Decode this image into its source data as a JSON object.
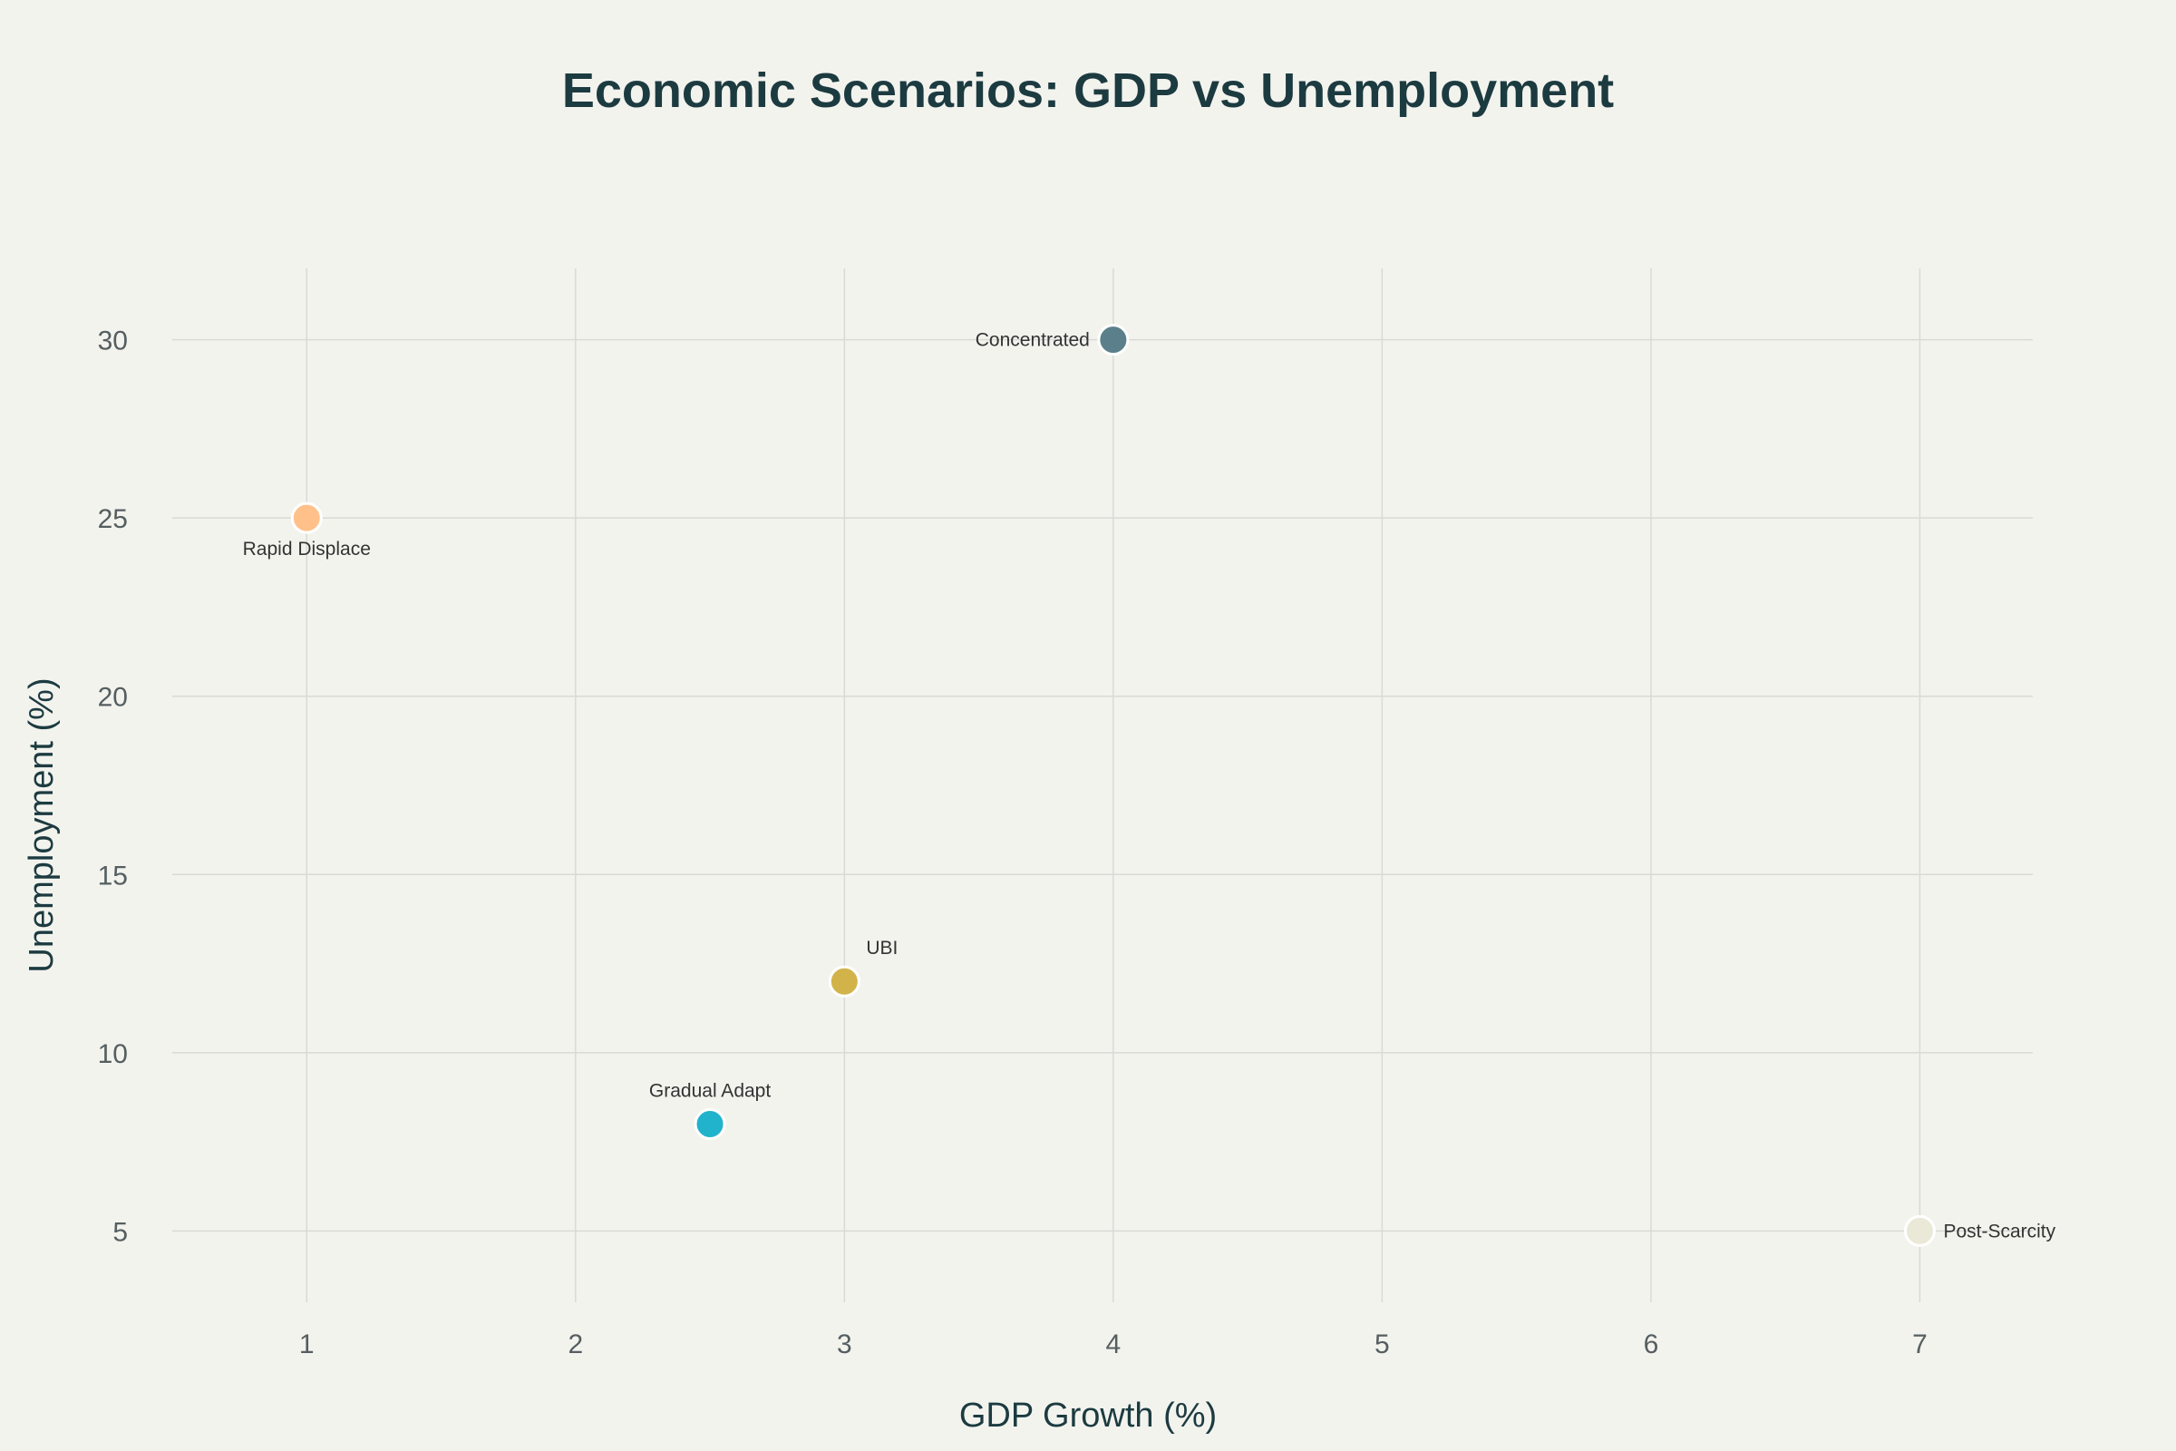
{
  "chart_data": {
    "type": "scatter",
    "title": "Economic Scenarios: GDP vs Unemployment",
    "xlabel": "GDP Growth (%)",
    "ylabel": "Unemployment (%)",
    "xlim": [
      0.5,
      7.42
    ],
    "ylim": [
      3.0,
      32.0
    ],
    "xticks": [
      1,
      2,
      3,
      4,
      5,
      6,
      7
    ],
    "yticks": [
      5,
      10,
      15,
      20,
      25,
      30
    ],
    "grid": true,
    "legend": "none",
    "points": [
      {
        "label": "Rapid Displace",
        "x": 1.0,
        "y": 25.0,
        "color": "#ffc08a",
        "label_position": "bottom"
      },
      {
        "label": "Concentrated",
        "x": 4.0,
        "y": 30.0,
        "color": "#5b808b",
        "label_position": "left"
      },
      {
        "label": "UBI",
        "x": 3.0,
        "y": 12.0,
        "color": "#d2b34a",
        "label_position": "top-right"
      },
      {
        "label": "Gradual Adapt",
        "x": 2.5,
        "y": 8.0,
        "color": "#22b3cc",
        "label_position": "top"
      },
      {
        "label": "Post-Scarcity",
        "x": 7.0,
        "y": 5.0,
        "color": "#eae8d6",
        "label_position": "right"
      }
    ]
  }
}
